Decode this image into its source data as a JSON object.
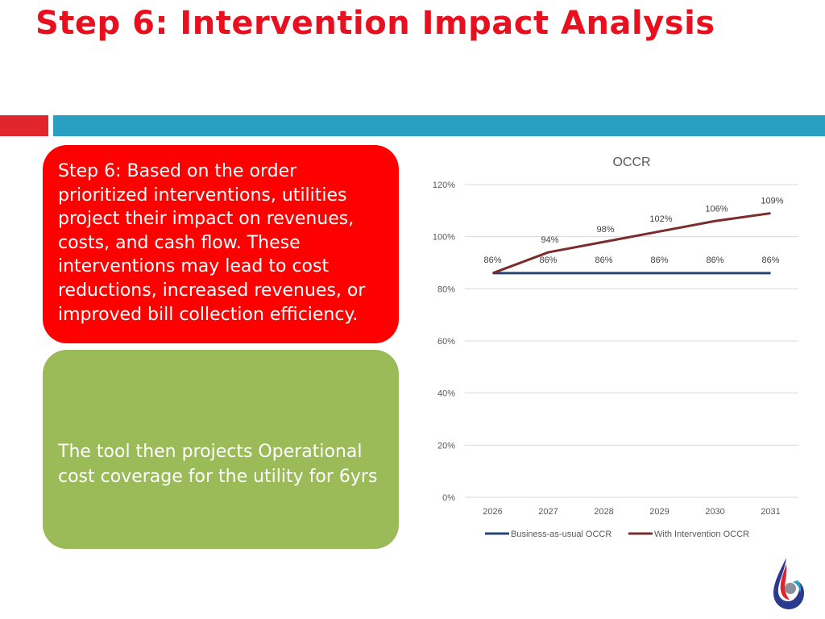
{
  "slide": {
    "title": "Step 6: Intervention Impact Analysis",
    "title_color": "#e8101e",
    "band_red_color": "#e0252e",
    "band_blue_color": "#2b9fc2"
  },
  "cards": {
    "red_text": "Step 6: Based on the order prioritized interventions, utilities project their impact on revenues, costs, and cash flow. These interventions may lead to cost reductions, increased revenues, or improved bill collection efficiency.",
    "red_color": "#ff0000",
    "green_text": "The tool then projects Operational cost coverage  for the utility for 6yrs",
    "green_color": "#9bbb59"
  },
  "logo": {
    "icon": "water-drop-logo-icon"
  },
  "chart_data": {
    "type": "line",
    "title": "OCCR",
    "categories": [
      "2026",
      "2027",
      "2028",
      "2029",
      "2030",
      "2031"
    ],
    "y_ticks": [
      "0%",
      "20%",
      "40%",
      "60%",
      "80%",
      "100%",
      "120%"
    ],
    "ylim": [
      0,
      120
    ],
    "grid": true,
    "legend_position": "bottom",
    "series": [
      {
        "name": "Business-as-usual OCCR",
        "values": [
          86,
          86,
          86,
          86,
          86,
          86
        ],
        "labels": [
          "86%",
          "86%",
          "86%",
          "86%",
          "86%",
          "86%"
        ],
        "color": "#264478"
      },
      {
        "name": "With Intervention OCCR",
        "values": [
          86,
          94,
          98,
          102,
          106,
          109
        ],
        "labels": [
          "",
          "94%",
          "98%",
          "102%",
          "106%",
          "109%"
        ],
        "color": "#7b2c2c"
      }
    ]
  }
}
